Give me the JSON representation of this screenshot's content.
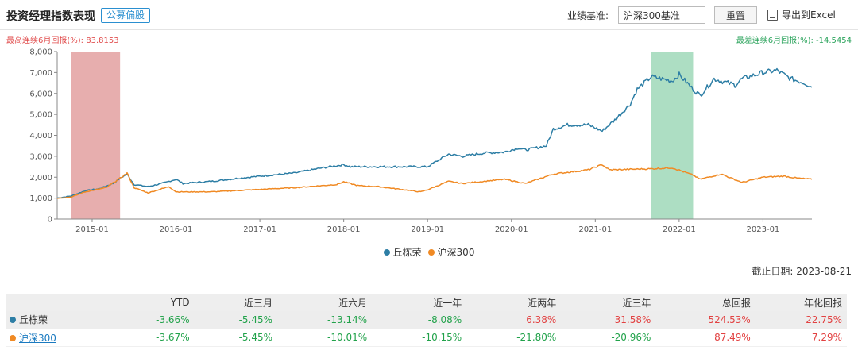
{
  "header": {
    "title": "投资经理指数表现",
    "tag": "公募偏股",
    "benchmark_label": "业绩基准:",
    "benchmark_value": "沪深300基准",
    "reset_label": "重置",
    "export_label": "导出到Excel",
    "export_icon": "excel-icon"
  },
  "annotations": {
    "max_return": "最高连续6月回报(%):  83.8153",
    "min_return": "最差连续6月回报(%):  -14.5454"
  },
  "chart_data": {
    "type": "line",
    "y_ticks": [
      "0",
      "1,000",
      "2,000",
      "3,000",
      "4,000",
      "5,000",
      "6,000",
      "7,000",
      "8,000"
    ],
    "ylim": [
      0,
      8000
    ],
    "x_ticks": [
      "2015-01",
      "2016-01",
      "2017-01",
      "2018-01",
      "2019-01",
      "2020-01",
      "2021-01",
      "2022-01",
      "2023-01"
    ],
    "x_range": [
      "2014-08",
      "2023-08"
    ],
    "highlight_max": {
      "start": "2014-10",
      "end": "2015-05",
      "color": "#e3a0a0"
    },
    "highlight_min": {
      "start": "2021-09",
      "end": "2022-03",
      "color": "#9fd8b8"
    },
    "series": [
      {
        "name": "丘栋荣",
        "color": "#2d7ea5",
        "points": [
          [
            "2014-08",
            1000
          ],
          [
            "2014-10",
            1100
          ],
          [
            "2014-12",
            1350
          ],
          [
            "2015-02",
            1450
          ],
          [
            "2015-04",
            1700
          ],
          [
            "2015-05",
            1950
          ],
          [
            "2015-06",
            2150
          ],
          [
            "2015-07",
            1650
          ],
          [
            "2015-09",
            1550
          ],
          [
            "2015-11",
            1700
          ],
          [
            "2016-01",
            1900
          ],
          [
            "2016-02",
            1700
          ],
          [
            "2016-06",
            1800
          ],
          [
            "2016-10",
            1950
          ],
          [
            "2017-01",
            2050
          ],
          [
            "2017-06",
            2200
          ],
          [
            "2017-10",
            2450
          ],
          [
            "2018-01",
            2600
          ],
          [
            "2018-02",
            2500
          ],
          [
            "2018-06",
            2500
          ],
          [
            "2018-12",
            2500
          ],
          [
            "2019-01",
            2500
          ],
          [
            "2019-02",
            2700
          ],
          [
            "2019-04",
            3100
          ],
          [
            "2019-06",
            3000
          ],
          [
            "2019-09",
            3150
          ],
          [
            "2019-12",
            3200
          ],
          [
            "2020-02",
            3400
          ],
          [
            "2020-03",
            3300
          ],
          [
            "2020-06",
            3500
          ],
          [
            "2020-07",
            4300
          ],
          [
            "2020-09",
            4500
          ],
          [
            "2020-12",
            4500
          ],
          [
            "2021-02",
            4200
          ],
          [
            "2021-04",
            4800
          ],
          [
            "2021-06",
            5500
          ],
          [
            "2021-07",
            6200
          ],
          [
            "2021-09",
            6800
          ],
          [
            "2021-12",
            6600
          ],
          [
            "2022-01",
            6900
          ],
          [
            "2022-03",
            6200
          ],
          [
            "2022-04",
            5900
          ],
          [
            "2022-06",
            6700
          ],
          [
            "2022-09",
            6400
          ],
          [
            "2022-10",
            6700
          ],
          [
            "2023-01",
            7000
          ],
          [
            "2023-03",
            7100
          ],
          [
            "2023-05",
            6700
          ],
          [
            "2023-07",
            6500
          ],
          [
            "2023-08",
            6300
          ]
        ]
      },
      {
        "name": "沪深300",
        "color": "#f08a24",
        "points": [
          [
            "2014-08",
            1000
          ],
          [
            "2014-10",
            1050
          ],
          [
            "2014-12",
            1300
          ],
          [
            "2015-03",
            1500
          ],
          [
            "2015-05",
            1950
          ],
          [
            "2015-06",
            2200
          ],
          [
            "2015-07",
            1500
          ],
          [
            "2015-09",
            1250
          ],
          [
            "2015-12",
            1550
          ],
          [
            "2016-01",
            1300
          ],
          [
            "2016-06",
            1300
          ],
          [
            "2016-12",
            1400
          ],
          [
            "2017-06",
            1500
          ],
          [
            "2017-12",
            1650
          ],
          [
            "2018-01",
            1780
          ],
          [
            "2018-03",
            1600
          ],
          [
            "2018-06",
            1550
          ],
          [
            "2018-12",
            1300
          ],
          [
            "2019-01",
            1400
          ],
          [
            "2019-04",
            1800
          ],
          [
            "2019-06",
            1700
          ],
          [
            "2019-12",
            1900
          ],
          [
            "2020-03",
            1700
          ],
          [
            "2020-07",
            2150
          ],
          [
            "2020-12",
            2350
          ],
          [
            "2021-02",
            2600
          ],
          [
            "2021-03",
            2350
          ],
          [
            "2021-09",
            2400
          ],
          [
            "2021-12",
            2450
          ],
          [
            "2022-03",
            2100
          ],
          [
            "2022-04",
            1900
          ],
          [
            "2022-07",
            2150
          ],
          [
            "2022-10",
            1750
          ],
          [
            "2023-01",
            2000
          ],
          [
            "2023-04",
            2050
          ],
          [
            "2023-06",
            1950
          ],
          [
            "2023-08",
            1900
          ]
        ]
      }
    ]
  },
  "legend": [
    {
      "name": "丘栋荣",
      "color": "#2d7ea5"
    },
    {
      "name": "沪深300",
      "color": "#f08a24"
    }
  ],
  "cutoff": "截止日期:  2023-08-21",
  "table": {
    "headers": [
      "",
      "YTD",
      "近三月",
      "近六月",
      "近一年",
      "近两年",
      "近三年",
      "总回报",
      "年化回报"
    ],
    "rows": [
      {
        "name": "丘栋荣",
        "color": "#2d7ea5",
        "values": [
          "-3.66%",
          "-5.45%",
          "-13.14%",
          "-8.08%",
          "6.38%",
          "31.58%",
          "524.53%",
          "22.75%"
        ]
      },
      {
        "name": "沪深300",
        "color": "#f08a24",
        "values": [
          "-3.67%",
          "-5.45%",
          "-10.01%",
          "-10.15%",
          "-21.80%",
          "-20.96%",
          "87.49%",
          "7.29%"
        ]
      }
    ]
  }
}
